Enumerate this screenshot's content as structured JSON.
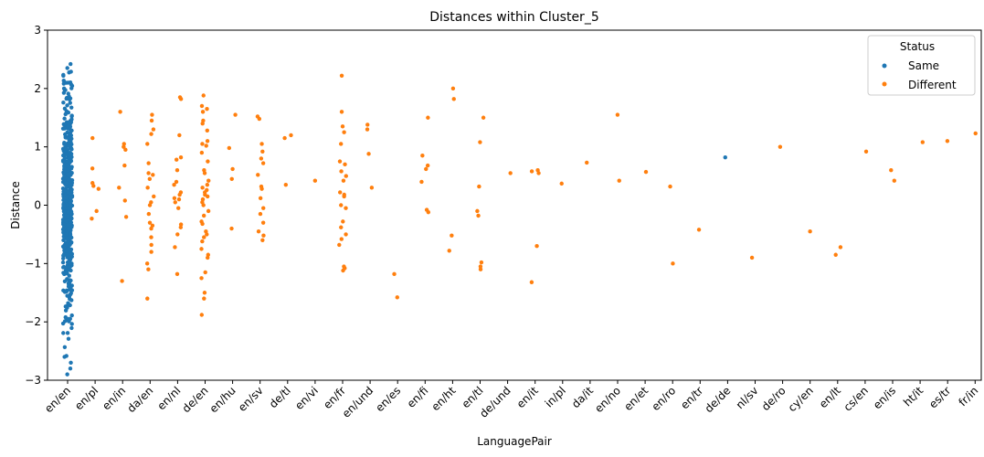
{
  "chart_data": {
    "type": "scatter",
    "title": "Distances within Cluster_5",
    "xlabel": "LanguagePair",
    "ylabel": "Distance",
    "ylim": [
      -3,
      3
    ],
    "yticks": [
      "−3",
      "−2",
      "−1",
      "0",
      "1",
      "2",
      "3"
    ],
    "categories": [
      "en/en",
      "en/pl",
      "en/in",
      "da/en",
      "en/nl",
      "de/en",
      "en/hu",
      "en/sv",
      "de/tl",
      "en/vi",
      "en/fr",
      "en/und",
      "en/es",
      "en/fi",
      "en/ht",
      "en/tl",
      "de/und",
      "en/it",
      "in/pl",
      "da/it",
      "en/no",
      "en/et",
      "en/ro",
      "en/tr",
      "de/de",
      "nl/sv",
      "de/ro",
      "cy/en",
      "en/lt",
      "cs/en",
      "en/is",
      "ht/it",
      "es/tr",
      "fr/in"
    ],
    "legend": {
      "title": "Status",
      "position": "upper-right"
    },
    "colors": {
      "Same": "#1f77b4",
      "Different": "#ff7f0e"
    },
    "grid": false,
    "series": [
      {
        "name": "Same",
        "color": "#1f77b4",
        "points": [
          {
            "x": "en/en",
            "y": 2.42
          },
          {
            "x": "en/en",
            "y": 2.35
          },
          {
            "x": "en/en",
            "y": 2.1
          },
          {
            "x": "en/en",
            "y": 2.0
          },
          {
            "x": "en/en",
            "y": -2.9
          },
          {
            "x": "en/en",
            "y": -2.8
          },
          {
            "x": "en/en",
            "y": -2.7
          },
          {
            "x": "en/en",
            "y": -2.6
          },
          {
            "x": "de/de",
            "y": 0.82
          }
        ]
      },
      {
        "name": "Different",
        "color": "#ff7f0e",
        "points": [
          {
            "x": "en/pl",
            "y": 1.15
          },
          {
            "x": "en/pl",
            "y": 0.63
          },
          {
            "x": "en/pl",
            "y": 0.38
          },
          {
            "x": "en/pl",
            "y": 0.33
          },
          {
            "x": "en/pl",
            "y": 0.28
          },
          {
            "x": "en/pl",
            "y": -0.1
          },
          {
            "x": "en/pl",
            "y": -0.23
          },
          {
            "x": "en/in",
            "y": 1.6
          },
          {
            "x": "en/in",
            "y": 1.05
          },
          {
            "x": "en/in",
            "y": 1.0
          },
          {
            "x": "en/in",
            "y": 0.95
          },
          {
            "x": "en/in",
            "y": 0.68
          },
          {
            "x": "en/in",
            "y": 0.3
          },
          {
            "x": "en/in",
            "y": 0.08
          },
          {
            "x": "en/in",
            "y": -0.2
          },
          {
            "x": "en/in",
            "y": -1.3
          },
          {
            "x": "da/en",
            "y": 1.55
          },
          {
            "x": "da/en",
            "y": 1.45
          },
          {
            "x": "da/en",
            "y": 1.3
          },
          {
            "x": "da/en",
            "y": 1.22
          },
          {
            "x": "da/en",
            "y": 1.05
          },
          {
            "x": "da/en",
            "y": 0.72
          },
          {
            "x": "da/en",
            "y": 0.55
          },
          {
            "x": "da/en",
            "y": 0.52
          },
          {
            "x": "da/en",
            "y": 0.45
          },
          {
            "x": "da/en",
            "y": 0.3
          },
          {
            "x": "da/en",
            "y": 0.15
          },
          {
            "x": "da/en",
            "y": 0.05
          },
          {
            "x": "da/en",
            "y": 0.0
          },
          {
            "x": "da/en",
            "y": -0.15
          },
          {
            "x": "da/en",
            "y": -0.3
          },
          {
            "x": "da/en",
            "y": -0.35
          },
          {
            "x": "da/en",
            "y": -0.4
          },
          {
            "x": "da/en",
            "y": -0.55
          },
          {
            "x": "da/en",
            "y": -0.68
          },
          {
            "x": "da/en",
            "y": -0.8
          },
          {
            "x": "da/en",
            "y": -1.0
          },
          {
            "x": "da/en",
            "y": -1.1
          },
          {
            "x": "da/en",
            "y": -1.6
          },
          {
            "x": "en/nl",
            "y": 1.85
          },
          {
            "x": "en/nl",
            "y": 1.82
          },
          {
            "x": "en/nl",
            "y": 1.2
          },
          {
            "x": "en/nl",
            "y": 0.82
          },
          {
            "x": "en/nl",
            "y": 0.78
          },
          {
            "x": "en/nl",
            "y": 0.6
          },
          {
            "x": "en/nl",
            "y": 0.4
          },
          {
            "x": "en/nl",
            "y": 0.35
          },
          {
            "x": "en/nl",
            "y": 0.22
          },
          {
            "x": "en/nl",
            "y": 0.18
          },
          {
            "x": "en/nl",
            "y": 0.12
          },
          {
            "x": "en/nl",
            "y": 0.1
          },
          {
            "x": "en/nl",
            "y": 0.05
          },
          {
            "x": "en/nl",
            "y": -0.05
          },
          {
            "x": "en/nl",
            "y": -0.33
          },
          {
            "x": "en/nl",
            "y": -0.38
          },
          {
            "x": "en/nl",
            "y": -0.5
          },
          {
            "x": "en/nl",
            "y": -0.72
          },
          {
            "x": "en/nl",
            "y": -1.18
          },
          {
            "x": "de/en",
            "y": 1.88
          },
          {
            "x": "de/en",
            "y": 1.7
          },
          {
            "x": "de/en",
            "y": 1.65
          },
          {
            "x": "de/en",
            "y": 1.6
          },
          {
            "x": "de/en",
            "y": 1.45
          },
          {
            "x": "de/en",
            "y": 1.4
          },
          {
            "x": "de/en",
            "y": 1.28
          },
          {
            "x": "de/en",
            "y": 1.1
          },
          {
            "x": "de/en",
            "y": 1.05
          },
          {
            "x": "de/en",
            "y": 1.02
          },
          {
            "x": "de/en",
            "y": 0.9
          },
          {
            "x": "de/en",
            "y": 0.75
          },
          {
            "x": "de/en",
            "y": 0.6
          },
          {
            "x": "de/en",
            "y": 0.55
          },
          {
            "x": "de/en",
            "y": 0.42
          },
          {
            "x": "de/en",
            "y": 0.35
          },
          {
            "x": "de/en",
            "y": 0.3
          },
          {
            "x": "de/en",
            "y": 0.26
          },
          {
            "x": "de/en",
            "y": 0.22
          },
          {
            "x": "de/en",
            "y": 0.18
          },
          {
            "x": "de/en",
            "y": 0.15
          },
          {
            "x": "de/en",
            "y": 0.1
          },
          {
            "x": "de/en",
            "y": 0.05
          },
          {
            "x": "de/en",
            "y": 0.0
          },
          {
            "x": "de/en",
            "y": -0.1
          },
          {
            "x": "de/en",
            "y": -0.18
          },
          {
            "x": "de/en",
            "y": -0.28
          },
          {
            "x": "de/en",
            "y": -0.32
          },
          {
            "x": "de/en",
            "y": -0.45
          },
          {
            "x": "de/en",
            "y": -0.5
          },
          {
            "x": "de/en",
            "y": -0.55
          },
          {
            "x": "de/en",
            "y": -0.62
          },
          {
            "x": "de/en",
            "y": -0.75
          },
          {
            "x": "de/en",
            "y": -0.85
          },
          {
            "x": "de/en",
            "y": -0.9
          },
          {
            "x": "de/en",
            "y": -1.15
          },
          {
            "x": "de/en",
            "y": -1.25
          },
          {
            "x": "de/en",
            "y": -1.5
          },
          {
            "x": "de/en",
            "y": -1.6
          },
          {
            "x": "de/en",
            "y": -1.88
          },
          {
            "x": "en/hu",
            "y": 1.55
          },
          {
            "x": "en/hu",
            "y": 0.98
          },
          {
            "x": "en/hu",
            "y": 0.62
          },
          {
            "x": "en/hu",
            "y": 0.45
          },
          {
            "x": "en/hu",
            "y": -0.4
          },
          {
            "x": "en/sv",
            "y": 1.52
          },
          {
            "x": "en/sv",
            "y": 1.48
          },
          {
            "x": "en/sv",
            "y": 1.05
          },
          {
            "x": "en/sv",
            "y": 0.92
          },
          {
            "x": "en/sv",
            "y": 0.8
          },
          {
            "x": "en/sv",
            "y": 0.72
          },
          {
            "x": "en/sv",
            "y": 0.52
          },
          {
            "x": "en/sv",
            "y": 0.32
          },
          {
            "x": "en/sv",
            "y": 0.28
          },
          {
            "x": "en/sv",
            "y": 0.12
          },
          {
            "x": "en/sv",
            "y": -0.05
          },
          {
            "x": "en/sv",
            "y": -0.15
          },
          {
            "x": "en/sv",
            "y": -0.3
          },
          {
            "x": "en/sv",
            "y": -0.45
          },
          {
            "x": "en/sv",
            "y": -0.52
          },
          {
            "x": "en/sv",
            "y": -0.6
          },
          {
            "x": "de/tl",
            "y": 1.2
          },
          {
            "x": "de/tl",
            "y": 1.15
          },
          {
            "x": "de/tl",
            "y": 0.35
          },
          {
            "x": "en/vi",
            "y": 0.42
          },
          {
            "x": "en/fr",
            "y": 2.22
          },
          {
            "x": "en/fr",
            "y": 1.6
          },
          {
            "x": "en/fr",
            "y": 1.35
          },
          {
            "x": "en/fr",
            "y": 1.25
          },
          {
            "x": "en/fr",
            "y": 1.05
          },
          {
            "x": "en/fr",
            "y": 0.75
          },
          {
            "x": "en/fr",
            "y": 0.7
          },
          {
            "x": "en/fr",
            "y": 0.58
          },
          {
            "x": "en/fr",
            "y": 0.5
          },
          {
            "x": "en/fr",
            "y": 0.42
          },
          {
            "x": "en/fr",
            "y": 0.22
          },
          {
            "x": "en/fr",
            "y": 0.18
          },
          {
            "x": "en/fr",
            "y": 0.15
          },
          {
            "x": "en/fr",
            "y": 0.0
          },
          {
            "x": "en/fr",
            "y": -0.05
          },
          {
            "x": "en/fr",
            "y": -0.28
          },
          {
            "x": "en/fr",
            "y": -0.38
          },
          {
            "x": "en/fr",
            "y": -0.5
          },
          {
            "x": "en/fr",
            "y": -0.58
          },
          {
            "x": "en/fr",
            "y": -0.68
          },
          {
            "x": "en/fr",
            "y": -1.05
          },
          {
            "x": "en/fr",
            "y": -1.08
          },
          {
            "x": "en/fr",
            "y": -1.12
          },
          {
            "x": "en/und",
            "y": 1.38
          },
          {
            "x": "en/und",
            "y": 1.3
          },
          {
            "x": "en/und",
            "y": 0.88
          },
          {
            "x": "en/und",
            "y": 0.3
          },
          {
            "x": "en/es",
            "y": -1.18
          },
          {
            "x": "en/es",
            "y": -1.58
          },
          {
            "x": "en/fi",
            "y": 1.5
          },
          {
            "x": "en/fi",
            "y": 0.85
          },
          {
            "x": "en/fi",
            "y": 0.68
          },
          {
            "x": "en/fi",
            "y": 0.62
          },
          {
            "x": "en/fi",
            "y": 0.4
          },
          {
            "x": "en/fi",
            "y": -0.08
          },
          {
            "x": "en/fi",
            "y": -0.12
          },
          {
            "x": "en/ht",
            "y": 2.0
          },
          {
            "x": "en/ht",
            "y": 1.82
          },
          {
            "x": "en/ht",
            "y": -0.52
          },
          {
            "x": "en/ht",
            "y": -0.78
          },
          {
            "x": "en/tl",
            "y": 1.5
          },
          {
            "x": "en/tl",
            "y": 1.08
          },
          {
            "x": "en/tl",
            "y": 0.32
          },
          {
            "x": "en/tl",
            "y": -0.1
          },
          {
            "x": "en/tl",
            "y": -0.18
          },
          {
            "x": "en/tl",
            "y": -0.98
          },
          {
            "x": "en/tl",
            "y": -1.05
          },
          {
            "x": "en/tl",
            "y": -1.1
          },
          {
            "x": "de/und",
            "y": 0.55
          },
          {
            "x": "en/it",
            "y": 0.6
          },
          {
            "x": "en/it",
            "y": 0.58
          },
          {
            "x": "en/it",
            "y": 0.55
          },
          {
            "x": "en/it",
            "y": -0.7
          },
          {
            "x": "en/it",
            "y": -1.32
          },
          {
            "x": "in/pl",
            "y": 0.37
          },
          {
            "x": "da/it",
            "y": 0.73
          },
          {
            "x": "en/no",
            "y": 1.55
          },
          {
            "x": "en/no",
            "y": 0.42
          },
          {
            "x": "en/et",
            "y": 0.57
          },
          {
            "x": "en/ro",
            "y": 0.32
          },
          {
            "x": "en/ro",
            "y": -1.0
          },
          {
            "x": "en/tr",
            "y": -0.42
          },
          {
            "x": "nl/sv",
            "y": -0.9
          },
          {
            "x": "de/ro",
            "y": 1.0
          },
          {
            "x": "cy/en",
            "y": -0.45
          },
          {
            "x": "en/lt",
            "y": -0.72
          },
          {
            "x": "en/lt",
            "y": -0.85
          },
          {
            "x": "cs/en",
            "y": 0.92
          },
          {
            "x": "en/is",
            "y": 0.6
          },
          {
            "x": "en/is",
            "y": 0.42
          },
          {
            "x": "ht/it",
            "y": 1.08
          },
          {
            "x": "es/tr",
            "y": 1.1
          },
          {
            "x": "fr/in",
            "y": 1.23
          }
        ]
      }
    ]
  }
}
